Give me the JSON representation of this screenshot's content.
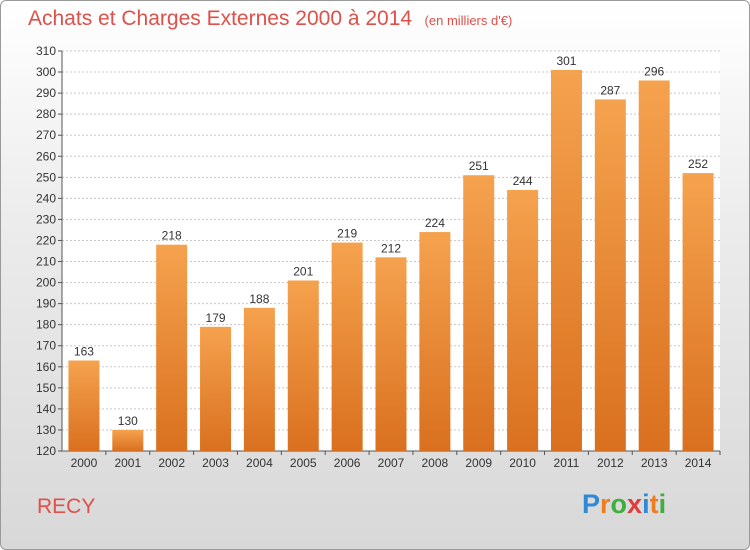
{
  "chart_data": {
    "type": "bar",
    "title": "Achats et Charges Externes 2000 à 2014",
    "subtitle": "(en milliers d'€)",
    "categories": [
      "2000",
      "2001",
      "2002",
      "2003",
      "2004",
      "2005",
      "2006",
      "2007",
      "2008",
      "2009",
      "2010",
      "2011",
      "2012",
      "2013",
      "2014"
    ],
    "values": [
      163,
      130,
      218,
      179,
      188,
      201,
      219,
      212,
      224,
      251,
      244,
      301,
      287,
      296,
      252
    ],
    "ylim": [
      120,
      310
    ],
    "ytick_step": 10,
    "grid": true,
    "bar_color_top": "#f5a24e",
    "bar_color_bottom": "#d9701f"
  },
  "footer": {
    "place": "RECY",
    "logo": [
      "P",
      "r",
      "o",
      "x",
      "i",
      "t",
      "i"
    ],
    "logo_colors": [
      "#2f8ad6",
      "#ef7c1f",
      "#3fae3c",
      "#e23b3b",
      "#2f8ad6",
      "#ef7c1f",
      "#3fae3c"
    ]
  },
  "colors": {
    "title": "#e0504a",
    "grid": "#c8c8c8",
    "axis": "#555555"
  }
}
